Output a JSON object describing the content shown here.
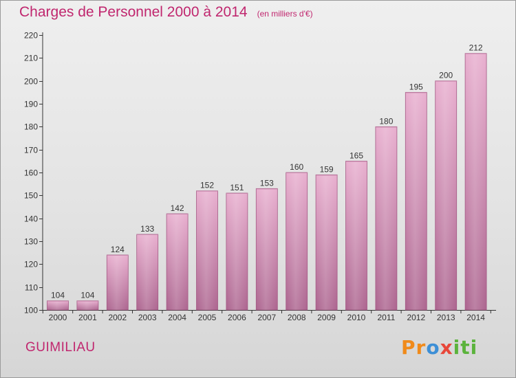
{
  "header": {
    "title": "Charges de Personnel 2000 à 2014",
    "subtitle": "(en milliers d'€)"
  },
  "footer": {
    "commune": "GUIMILIAU",
    "logo": "Proxiti"
  },
  "colors": {
    "accent": "#c0266e",
    "bar_top": "#e6aacb",
    "bar_bottom": "#b06890"
  },
  "chart_data": {
    "type": "bar",
    "title": "Charges de Personnel 2000 à 2014",
    "subtitle": "(en milliers d'€)",
    "categories": [
      "2000",
      "2001",
      "2002",
      "2003",
      "2004",
      "2005",
      "2006",
      "2007",
      "2008",
      "2009",
      "2010",
      "2011",
      "2012",
      "2013",
      "2014"
    ],
    "values": [
      104,
      104,
      124,
      133,
      142,
      152,
      151,
      153,
      160,
      159,
      165,
      180,
      195,
      200,
      212
    ],
    "ylim": [
      100,
      220
    ],
    "yticks": [
      100,
      110,
      120,
      130,
      140,
      150,
      160,
      170,
      180,
      190,
      200,
      210,
      220
    ],
    "grid": false,
    "xlabel": "",
    "ylabel": ""
  }
}
